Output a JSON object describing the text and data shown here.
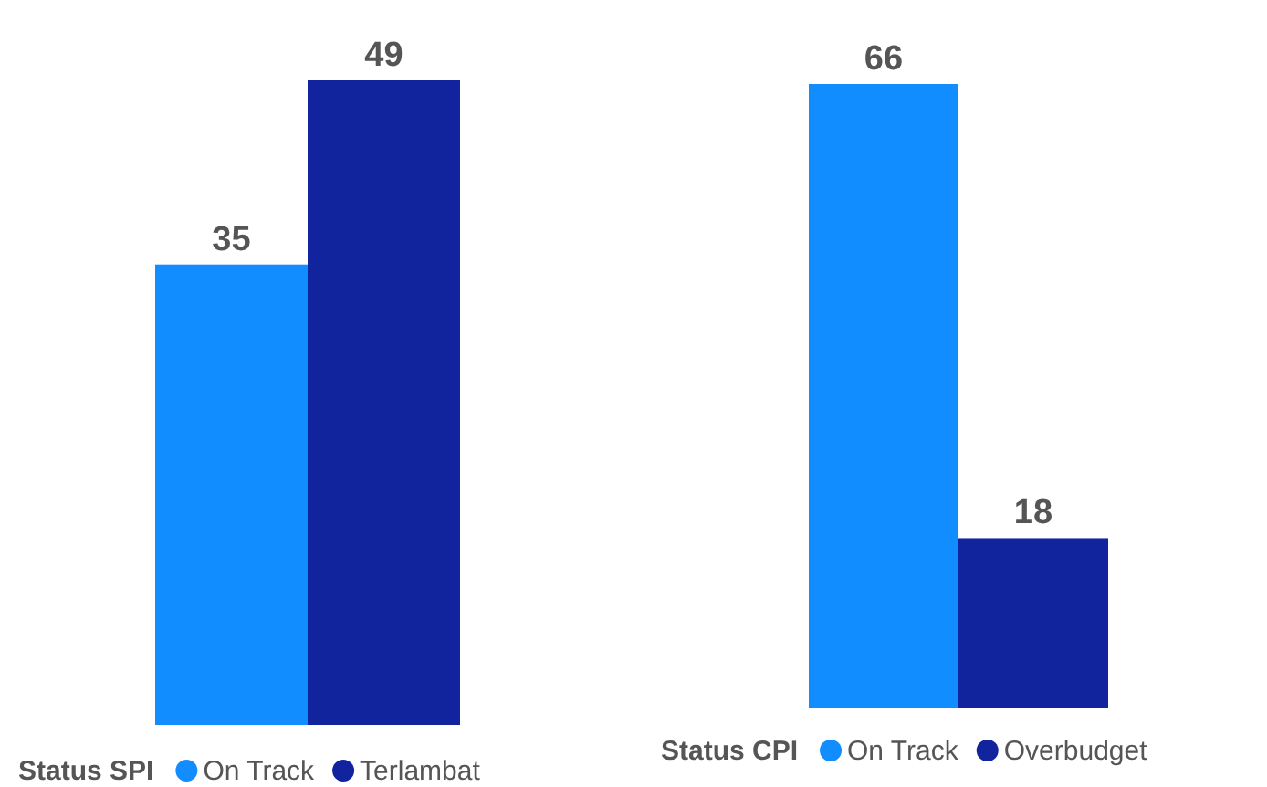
{
  "chart_data": [
    {
      "type": "bar",
      "categories": [
        null
      ],
      "series": [
        {
          "name": "On Track",
          "color": "#118dff",
          "values": [
            35
          ]
        },
        {
          "name": "Terlambat",
          "color": "#12239e",
          "values": [
            49
          ]
        }
      ],
      "data_labels": true,
      "legend": "bottom",
      "legend_title": "Status SPI",
      "tick_labels": false,
      "grid": false
    },
    {
      "type": "bar",
      "categories": [
        null
      ],
      "series": [
        {
          "name": "On Track",
          "color": "#118dff",
          "values": [
            66
          ]
        },
        {
          "name": "Overbudget",
          "color": "#12239e",
          "values": [
            18
          ]
        }
      ],
      "data_labels": true,
      "legend": "bottom",
      "legend_title": "Status CPI",
      "tick_labels": false,
      "grid": false
    }
  ]
}
